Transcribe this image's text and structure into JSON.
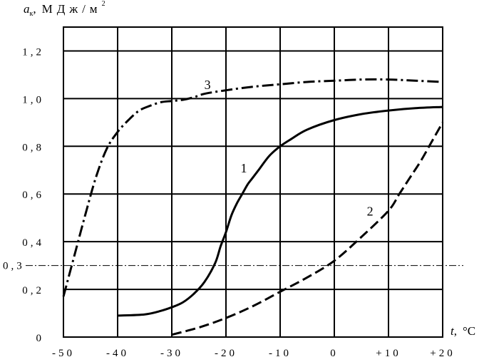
{
  "chart_data": {
    "type": "line",
    "title": "",
    "ylabel": {
      "symbol": "a",
      "subscript": "к",
      "sep": ",",
      "unit": "МДж/м",
      "sup": "2"
    },
    "xlabel": {
      "symbol": "t",
      "sep": ",",
      "unit": "°C"
    },
    "xlim": [
      -50,
      20
    ],
    "ylim": [
      0,
      1.3
    ],
    "x_ticks": [
      -50,
      -40,
      -30,
      -20,
      -10,
      0,
      10,
      20
    ],
    "x_tick_labels": [
      "-50",
      "-40",
      "-30",
      "-20",
      "-10",
      "0",
      "+10",
      "+20"
    ],
    "y_ticks": [
      0,
      0.2,
      0.4,
      0.6,
      0.8,
      1.0,
      1.2
    ],
    "y_tick_labels": [
      "0",
      "0,2",
      "0,4",
      "0,6",
      "0,8",
      "1,0",
      "1,2"
    ],
    "grid": true,
    "reference_line": {
      "y": 0.3,
      "label": "0,3",
      "style": "dash-dot"
    },
    "series": [
      {
        "name": "1",
        "style": "solid",
        "x": [
          -40,
          -35,
          -32,
          -30,
          -28,
          -26,
          -24,
          -22,
          -21,
          -20,
          -19,
          -18,
          -17,
          -16,
          -15,
          -14,
          -12,
          -10,
          -8,
          -5,
          0,
          5,
          10,
          15,
          20
        ],
        "y": [
          0.09,
          0.095,
          0.11,
          0.125,
          0.145,
          0.18,
          0.23,
          0.31,
          0.38,
          0.44,
          0.51,
          0.56,
          0.6,
          0.64,
          0.67,
          0.7,
          0.76,
          0.8,
          0.83,
          0.87,
          0.91,
          0.935,
          0.95,
          0.96,
          0.965
        ]
      },
      {
        "name": "2",
        "style": "dashed",
        "x": [
          -30,
          -25,
          -20,
          -15,
          -10,
          -5,
          0,
          5,
          10,
          12,
          14,
          16,
          18,
          20
        ],
        "y": [
          0.01,
          0.04,
          0.08,
          0.13,
          0.19,
          0.25,
          0.32,
          0.42,
          0.53,
          0.6,
          0.67,
          0.74,
          0.82,
          0.9
        ]
      },
      {
        "name": "3",
        "style": "dash-dot",
        "x": [
          -50,
          -48,
          -46,
          -44,
          -42,
          -40,
          -38,
          -36,
          -34,
          -32,
          -30,
          -28,
          -26,
          -24,
          -20,
          -15,
          -10,
          -5,
          0,
          5,
          10,
          15,
          20
        ],
        "y": [
          0.17,
          0.34,
          0.51,
          0.67,
          0.79,
          0.86,
          0.91,
          0.95,
          0.97,
          0.985,
          0.99,
          0.995,
          1.005,
          1.02,
          1.035,
          1.05,
          1.06,
          1.07,
          1.075,
          1.08,
          1.08,
          1.075,
          1.07
        ]
      }
    ],
    "curve_labels": [
      {
        "text": "1",
        "x": -17.3,
        "y": 0.69
      },
      {
        "text": "2",
        "x": 6,
        "y": 0.51
      },
      {
        "text": "3",
        "x": -24,
        "y": 1.04
      }
    ]
  }
}
